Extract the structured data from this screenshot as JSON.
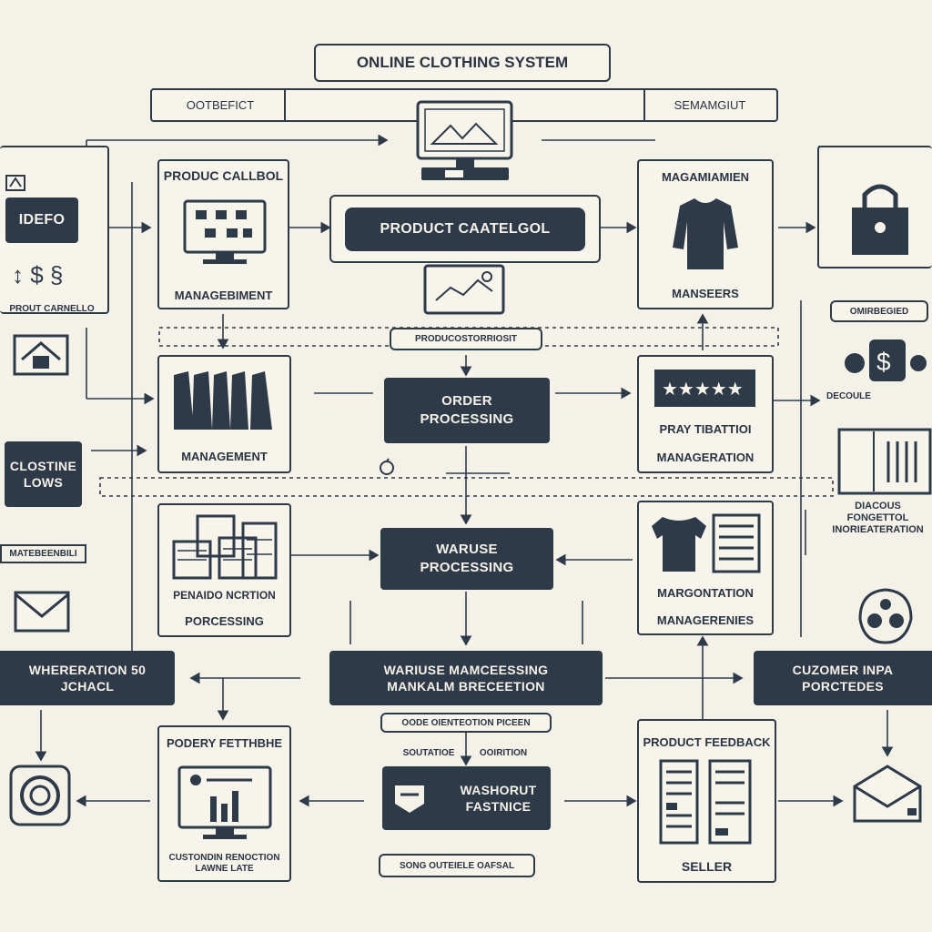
{
  "title": "ONLINE CLOTHING SYSTEM",
  "top_bar": {
    "left": "OOTBEFICT",
    "right": "SEMAMGIUT"
  },
  "nodes": {
    "product_catalog_mgmt": {
      "title": "PRODUC CALLBOL",
      "subtitle": "MANAGEBIMENT"
    },
    "product_catalog_center": "PRODUCT CAATELGOL",
    "product_customer_tag": "PRODUCOSTORRIOSIT",
    "managers": {
      "title": "MAGAMIAMIEN",
      "subtitle": "MANSEERS"
    },
    "left_top": {
      "label": "IDEFO",
      "caption": "PROUT CARNELLO"
    },
    "right_top_tag": "OMIRBEGIED",
    "order_processing": "ORDER PROCESSING",
    "management": "MANAGEMENT",
    "pray_management": {
      "title": "PRAY TIBATTIOI",
      "subtitle": "MANAGERATION"
    },
    "right_doc": {
      "caption": "DIACOUS FONGETTOL INORIEATERATION"
    },
    "right_decoule": "DECOULE",
    "closing_lows": "CLOSTINE LOWS",
    "left_tag_small": "MATEBEENBILI",
    "warehouse_processing": "WARUSE PROCESSING",
    "provider_processing": {
      "title": "PENAIDO NCRTION",
      "subtitle": "PORCESSING"
    },
    "margin_management": {
      "title": "MARGONTATION",
      "subtitle": "MANAGERENIES"
    },
    "wharehouse_left": "WHERERATION 50 JCHACL",
    "center_wide": "WARIUSE MAMCEESSING MANKALM BRECEETION",
    "customer_inputs": "CUZOMER INPA PORCTEDES",
    "odds_tag": "OODE OIENTEOTION PICEEN",
    "connector_labels": {
      "left": "SOUTATIOE",
      "right": "OOIRITION"
    },
    "product_fetching": {
      "title": "PODERY FETTHBHE",
      "caption": "CUSTONDIN RENOCTION LAWNE LATE"
    },
    "washout_fastnice": "WASHORUT FASTNICE",
    "bottom_tag": "SONG OUTEIELE OAFSAL",
    "product_feedback": {
      "title": "PRODUCT FEEDBACK",
      "subtitle": "SELLER"
    }
  },
  "colors": {
    "background": "#f4f1e9",
    "ink": "#2f3a48",
    "paper": "#f7f4ec"
  },
  "icons": [
    "monitor-icon",
    "shirt-icon",
    "lock-icon",
    "money-icon",
    "shop-icon",
    "clothes-rack-icon",
    "stars-icon",
    "book-icon",
    "coins-icon",
    "tshirt-icon",
    "envelope-icon",
    "target-icon",
    "chart-monitor-icon",
    "documents-icon",
    "envelope-open-icon",
    "gears-icon"
  ]
}
